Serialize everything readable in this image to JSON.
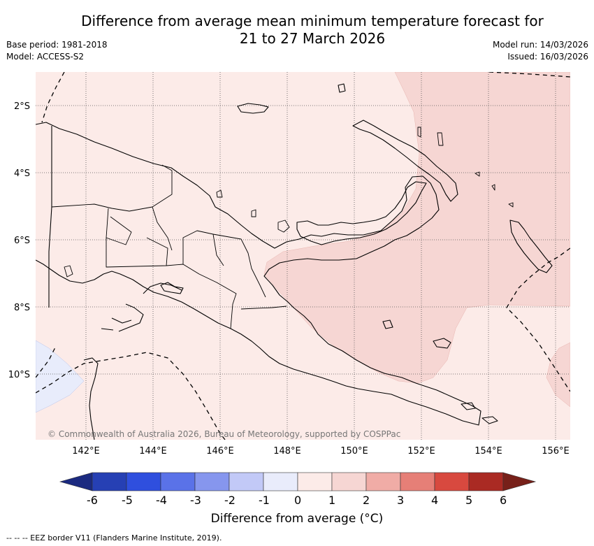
{
  "header": {
    "title_line1": "Difference from average mean minimum temperature forecast for",
    "title_line2": "21 to 27 March 2026",
    "base_period": "Base period: 1981-2018",
    "model": "Model: ACCESS-S2",
    "model_run": "Model run: 14/03/2026",
    "issued": "Issued: 16/03/2026"
  },
  "map": {
    "copyright": "© Commonwealth of Australia 2026, Bureau of Meteorology, supported by COSPPac",
    "lat_labels": [
      "2°S",
      "4°S",
      "6°S",
      "8°S",
      "10°S"
    ],
    "lon_labels": [
      "142°E",
      "144°E",
      "146°E",
      "148°E",
      "150°E",
      "152°E",
      "154°E",
      "156°E"
    ],
    "colors": {
      "base_fill": "#fcebe8",
      "warm_fill": "#f6d6d3",
      "cool_fill": "#e8ecfb",
      "land_outline": "#000000"
    }
  },
  "colorbar": {
    "title": "Difference from average (°C)",
    "tick_labels": [
      "-6",
      "-5",
      "-4",
      "-3",
      "-2",
      "-1",
      "0",
      "1",
      "2",
      "3",
      "4",
      "5",
      "6"
    ],
    "colors": [
      "#1b2a80",
      "#2640b4",
      "#2f4fde",
      "#5a72e8",
      "#8696ee",
      "#c2c9f7",
      "#e9ecfb",
      "#fcebe8",
      "#f6d6d3",
      "#f0aca6",
      "#e67f77",
      "#d8493f",
      "#aa2a23",
      "#772019"
    ]
  },
  "footnote": "-- -- -- EEZ border V11 (Flanders Marine Institute, 2019)."
}
